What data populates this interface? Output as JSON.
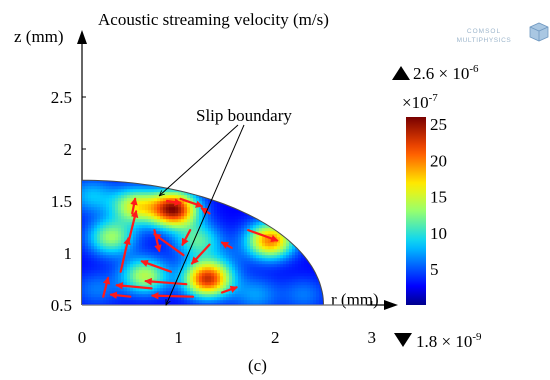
{
  "chart_data": {
    "type": "heatmap",
    "title": "Acoustic streaming velocity (m/s)",
    "xlabel": "r (mm)",
    "ylabel": "z (mm)",
    "xlim": [
      0,
      3
    ],
    "ylim": [
      0.5,
      2.9
    ],
    "x_ticks": [
      "0",
      "1",
      "2",
      "3"
    ],
    "y_ticks": [
      "0.5",
      "1",
      "1.5",
      "2",
      "2.5"
    ],
    "x_tick_values": [
      0,
      1,
      2,
      3
    ],
    "y_tick_values": [
      0.5,
      1,
      1.5,
      2,
      2.5
    ],
    "colorbar": {
      "max_marker": "2.6 × 10",
      "max_exponent": "-6",
      "min_marker": "1.8 × 10",
      "min_exponent": "-9",
      "scale_label": "×10",
      "scale_exponent": "-7",
      "ticks": [
        "5",
        "10",
        "15",
        "20",
        "25"
      ],
      "tick_values": [
        5,
        10,
        15,
        20,
        25
      ],
      "range": [
        0.02,
        26
      ]
    },
    "domain": {
      "shape": "ellipse-quadrant",
      "r_max": 2.5,
      "z_base": 0.5,
      "z_top": 1.7,
      "baseline_extends_to": 2.95
    },
    "field_peaks": [
      {
        "r": 0.95,
        "z": 1.42,
        "value": 25
      },
      {
        "r": 1.3,
        "z": 0.75,
        "value": 23
      },
      {
        "r": 1.95,
        "z": 1.12,
        "value": 20
      },
      {
        "r": 0.3,
        "z": 1.15,
        "value": 13
      },
      {
        "r": 0.55,
        "z": 1.45,
        "value": 15
      },
      {
        "r": 0.65,
        "z": 0.78,
        "value": 14
      },
      {
        "r": 1.2,
        "z": 1.12,
        "value": 11
      },
      {
        "r": 0.1,
        "z": 1.55,
        "value": 8
      },
      {
        "r": 2.3,
        "z": 0.6,
        "value": 6
      },
      {
        "r": 1.5,
        "z": 0.95,
        "value": 4
      },
      {
        "r": 0.15,
        "z": 0.65,
        "value": 6
      },
      {
        "r": 1.8,
        "z": 0.6,
        "value": 7
      }
    ],
    "arrows": [
      {
        "r": 0.22,
        "z": 0.58,
        "dr": 0.05,
        "dz": 0.18
      },
      {
        "r": 0.4,
        "z": 0.82,
        "dr": 0.08,
        "dz": 0.32
      },
      {
        "r": 0.48,
        "z": 1.1,
        "dr": 0.08,
        "dz": 0.3
      },
      {
        "r": 0.52,
        "z": 1.38,
        "dr": 0.03,
        "dz": 0.14
      },
      {
        "r": 0.75,
        "z": 1.22,
        "dr": 0.05,
        "dz": -0.2
      },
      {
        "r": 0.88,
        "z": 1.5,
        "dr": 0.14,
        "dz": -0.02
      },
      {
        "r": 1.02,
        "z": 1.52,
        "dr": 0.22,
        "dz": -0.07
      },
      {
        "r": 1.32,
        "z": 1.38,
        "dr": -0.08,
        "dz": 0.05
      },
      {
        "r": 1.12,
        "z": 1.22,
        "dr": -0.08,
        "dz": -0.14
      },
      {
        "r": 1.32,
        "z": 1.08,
        "dr": -0.18,
        "dz": -0.18
      },
      {
        "r": 1.05,
        "z": 0.98,
        "dr": -0.3,
        "dz": 0.2
      },
      {
        "r": 0.92,
        "z": 0.82,
        "dr": -0.3,
        "dz": 0.1
      },
      {
        "r": 1.08,
        "z": 0.7,
        "dr": -0.42,
        "dz": 0.03
      },
      {
        "r": 0.72,
        "z": 0.66,
        "dr": -0.36,
        "dz": 0.03
      },
      {
        "r": 1.15,
        "z": 0.58,
        "dr": -0.42,
        "dz": 0.01
      },
      {
        "r": 0.5,
        "z": 0.58,
        "dr": -0.2,
        "dz": 0.02
      },
      {
        "r": 1.72,
        "z": 1.22,
        "dr": 0.3,
        "dz": -0.1
      },
      {
        "r": 1.55,
        "z": 1.05,
        "dr": -0.1,
        "dz": 0.05
      },
      {
        "r": 1.45,
        "z": 0.62,
        "dr": 0.15,
        "dz": 0.05
      }
    ],
    "annotations": [
      {
        "text": "Slip boundary",
        "pointers": [
          {
            "r": 0.8,
            "z": 1.55
          },
          {
            "r": 0.87,
            "z": 0.5
          }
        ]
      }
    ]
  },
  "caption": "(c)",
  "logo": {
    "line1": "COMSOL",
    "line2": "MULTIPHYSICS"
  }
}
